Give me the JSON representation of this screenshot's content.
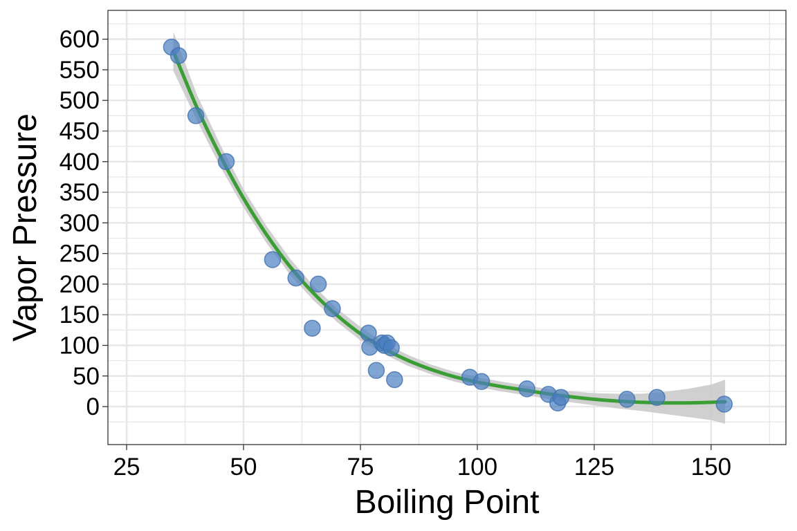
{
  "chart_data": {
    "type": "scatter",
    "title": "",
    "xlabel": "Boiling Point",
    "ylabel": "Vapor Pressure",
    "xlim": [
      21,
      166
    ],
    "ylim": [
      -62,
      647
    ],
    "xticks": [
      25,
      50,
      75,
      100,
      125,
      150
    ],
    "yticks": [
      0,
      50,
      100,
      150,
      200,
      250,
      300,
      350,
      400,
      450,
      500,
      550,
      600
    ],
    "grid": true,
    "legend": "none",
    "colors": {
      "points": "#4a7fc1",
      "point_stroke": "#3e6fae",
      "fit_line": "#3a9e35",
      "confidence_band": "#c8c8c8",
      "grid": "#e6e6e6",
      "panel_border": "#333333"
    },
    "series": [
      {
        "type": "scatter",
        "x": [
          34.6,
          36.1,
          39.8,
          46.3,
          56.2,
          61.2,
          64.7,
          66.0,
          69.0,
          76.7,
          77.0,
          78.4,
          79.6,
          80.1,
          80.7,
          81.6,
          82.3,
          98.4,
          100.9,
          110.6,
          115.2,
          117.2,
          117.9,
          132.0,
          138.4,
          152.8
        ],
        "y": [
          587,
          573,
          475,
          400,
          240,
          210,
          128,
          200,
          160,
          120,
          97,
          59,
          104,
          100,
          104,
          96,
          44,
          48,
          41,
          29,
          20,
          6,
          15,
          12,
          15,
          4
        ]
      },
      {
        "type": "line",
        "x": [
          35,
          40,
          45,
          50,
          55,
          60,
          65,
          70,
          75,
          80,
          85,
          90,
          95,
          100,
          105,
          110,
          115,
          120,
          125,
          130,
          135,
          140,
          145,
          150,
          153
        ],
        "y": [
          580,
          489,
          410,
          340,
          280,
          228,
          185,
          149,
          119,
          95,
          76,
          61,
          49,
          40,
          33,
          27,
          21,
          16,
          12,
          9,
          7,
          6,
          6,
          7,
          8
        ],
        "ci_lower": [
          548,
          468,
          392,
          325,
          266,
          215,
          173,
          138,
          108,
          86,
          67,
          53,
          41,
          32,
          25,
          19,
          13,
          7,
          2,
          -3,
          -7,
          -12,
          -17,
          -22,
          -28
        ],
        "ci_upper": [
          612,
          510,
          428,
          355,
          294,
          241,
          197,
          160,
          130,
          104,
          85,
          69,
          57,
          48,
          41,
          35,
          29,
          25,
          22,
          21,
          21,
          24,
          29,
          36,
          44
        ]
      }
    ]
  }
}
